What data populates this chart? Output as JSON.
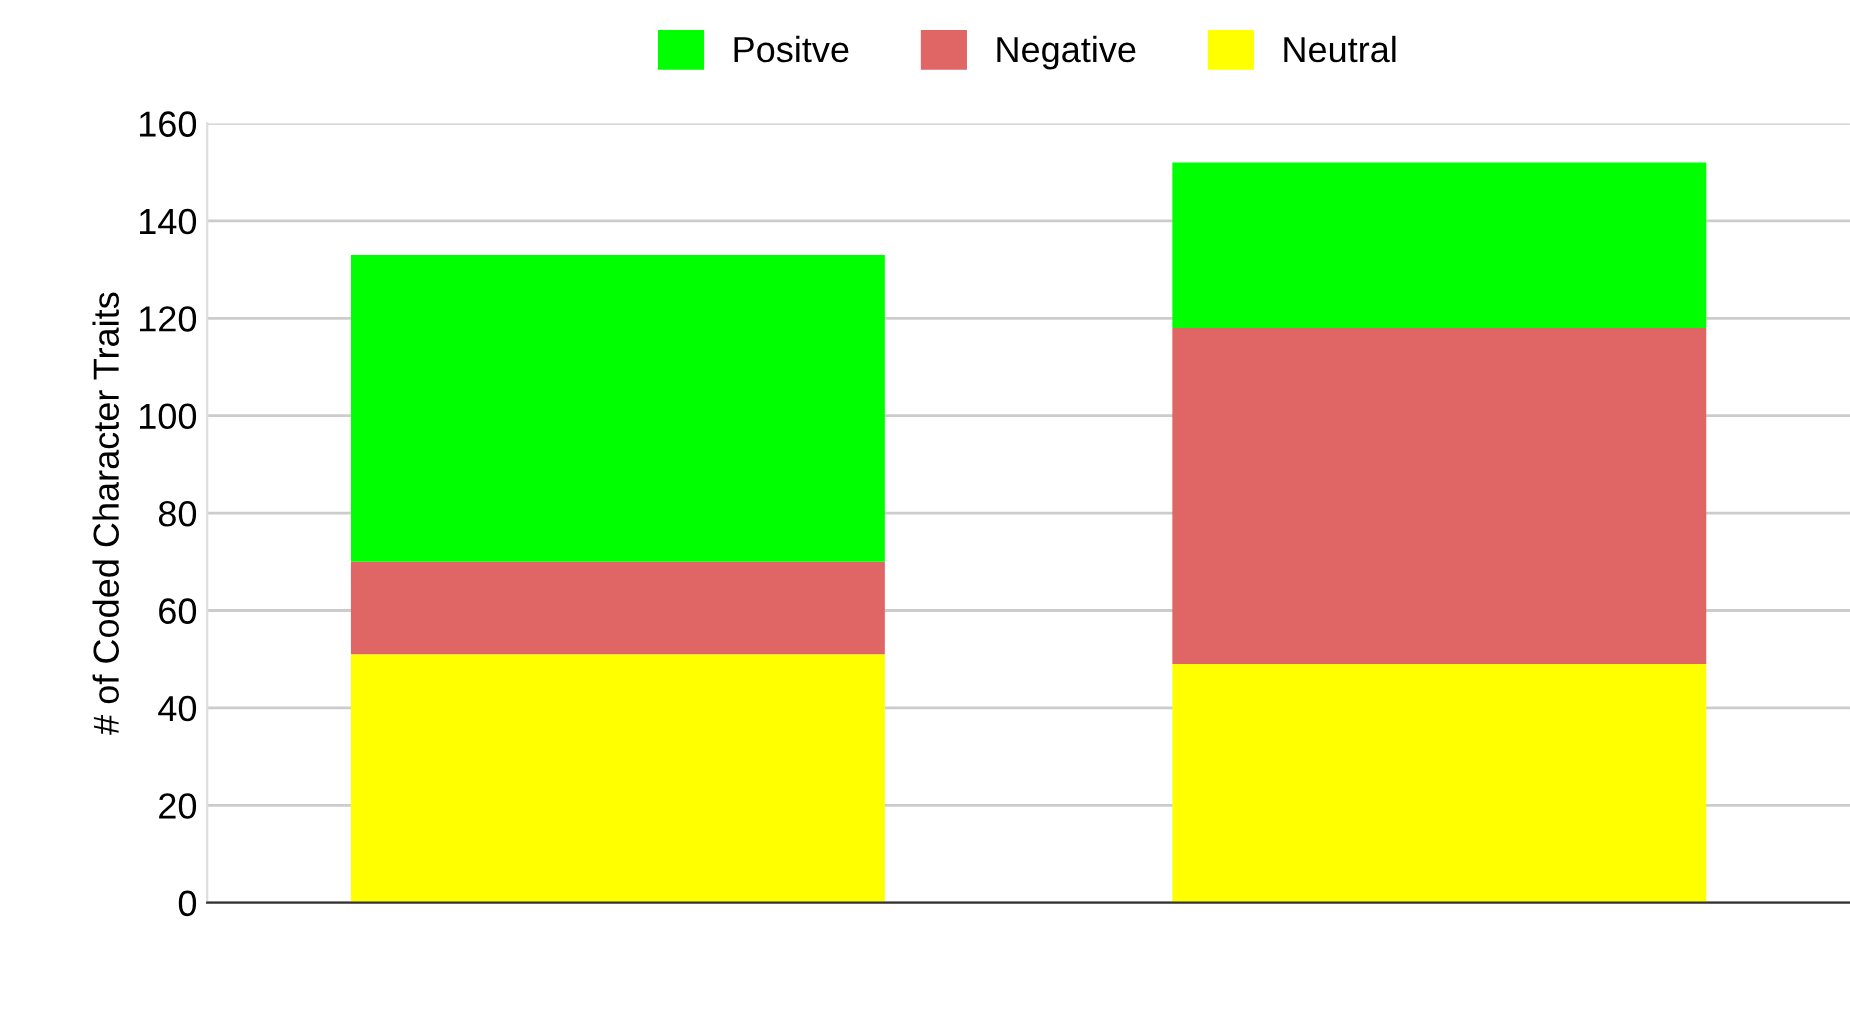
{
  "chart_data": {
    "type": "bar",
    "stacked": true,
    "ylabel": "# of Coded Character Traits",
    "categories": [
      null,
      null
    ],
    "series": [
      {
        "name": "Neutral",
        "color": "#ffff00",
        "values": [
          51,
          49
        ]
      },
      {
        "name": "Negative",
        "color": "#e06666",
        "values": [
          19,
          69
        ]
      },
      {
        "name": "Positve",
        "color": "#00ff00",
        "values": [
          63,
          34
        ]
      }
    ],
    "ylim": [
      0,
      160
    ],
    "yticks": [
      0,
      20,
      40,
      60,
      80,
      100,
      120,
      140,
      160
    ],
    "grid": "y",
    "legend": "top"
  }
}
